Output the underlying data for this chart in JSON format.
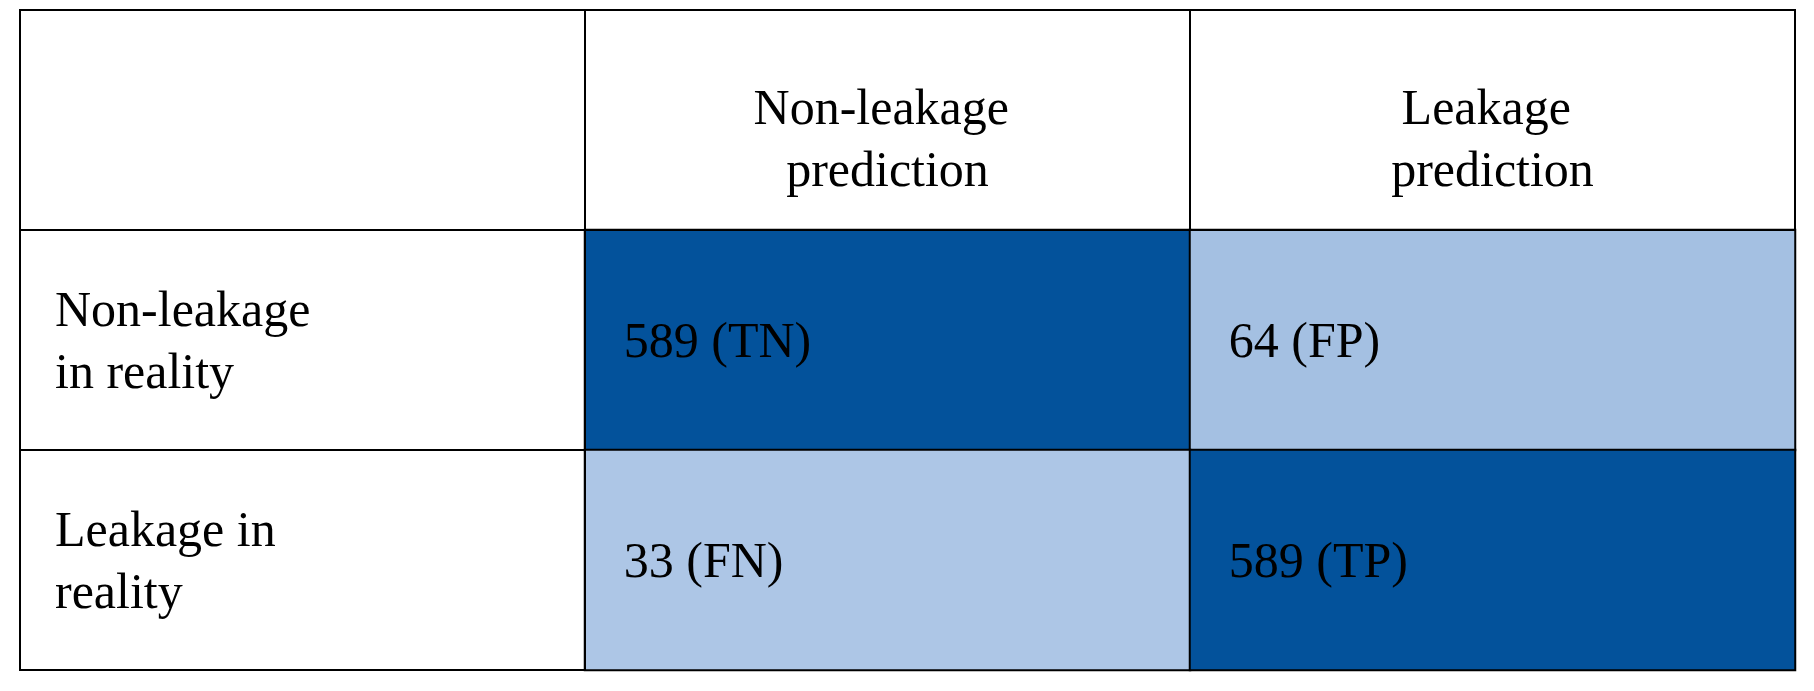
{
  "chart_data": {
    "type": "heatmap",
    "categories": [
      "Non-leakage prediction",
      "Leakage prediction"
    ],
    "y_categories": [
      "Non-leakage in reality",
      "Leakage in reality"
    ],
    "cells": [
      [
        589,
        64
      ],
      [
        33,
        589
      ]
    ],
    "cell_labels": [
      [
        "589 (TN)",
        "64 (FP)"
      ],
      [
        "33 (FN)",
        "589 (TP)"
      ]
    ],
    "colors": [
      [
        "#03529b",
        "#adc6e6"
      ],
      [
        "#adc6e6",
        "#03529b"
      ]
    ]
  }
}
